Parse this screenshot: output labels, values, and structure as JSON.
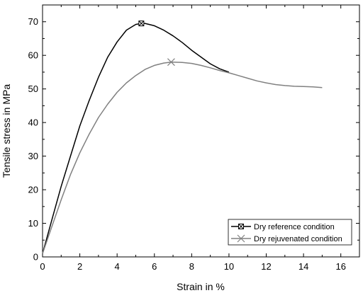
{
  "chart_data": {
    "type": "line",
    "title": "",
    "xlabel": "Strain in %",
    "ylabel": "Tensile stress in MPa",
    "xlim": [
      0,
      17
    ],
    "ylim": [
      0,
      75
    ],
    "xticks": [
      0,
      2,
      4,
      6,
      8,
      10,
      12,
      14,
      16
    ],
    "yticks": [
      0,
      10,
      20,
      30,
      40,
      50,
      60,
      70
    ],
    "grid": false,
    "legend_position": "bottom-right",
    "series": [
      {
        "name": "Dry reference condition",
        "color": "#000000",
        "marker": "boxed-x",
        "marker_point": [
          5.3,
          69.5
        ],
        "x": [
          0,
          0.5,
          1,
          1.5,
          2,
          2.5,
          3,
          3.5,
          4,
          4.5,
          5,
          5.3,
          5.5,
          6,
          6.5,
          7,
          7.5,
          8,
          8.5,
          9,
          9.5,
          10
        ],
        "y": [
          1,
          11,
          21,
          30,
          39,
          46.5,
          53.5,
          59.5,
          64,
          67.5,
          69.2,
          69.5,
          69.5,
          68.8,
          67.5,
          65.8,
          63.8,
          61.5,
          59.5,
          57.5,
          56,
          55
        ]
      },
      {
        "name": "Dry rejuvenated condition",
        "color": "#808080",
        "marker": "x",
        "marker_point": [
          6.9,
          58
        ],
        "x": [
          0,
          0.5,
          1,
          1.5,
          2,
          2.5,
          3,
          3.5,
          4,
          4.5,
          5,
          5.5,
          6,
          6.5,
          6.9,
          7.5,
          8,
          8.5,
          9,
          9.5,
          10,
          10.5,
          11,
          11.5,
          12,
          12.5,
          13,
          13.5,
          14,
          14.5,
          15
        ],
        "y": [
          1,
          9,
          17,
          24.5,
          31,
          36.5,
          41.5,
          45.5,
          49,
          51.8,
          54,
          55.8,
          57,
          57.7,
          58,
          57.9,
          57.6,
          57,
          56.3,
          55.5,
          54.8,
          54,
          53.2,
          52.4,
          51.8,
          51.3,
          51,
          50.8,
          50.7,
          50.6,
          50.4
        ]
      }
    ]
  }
}
